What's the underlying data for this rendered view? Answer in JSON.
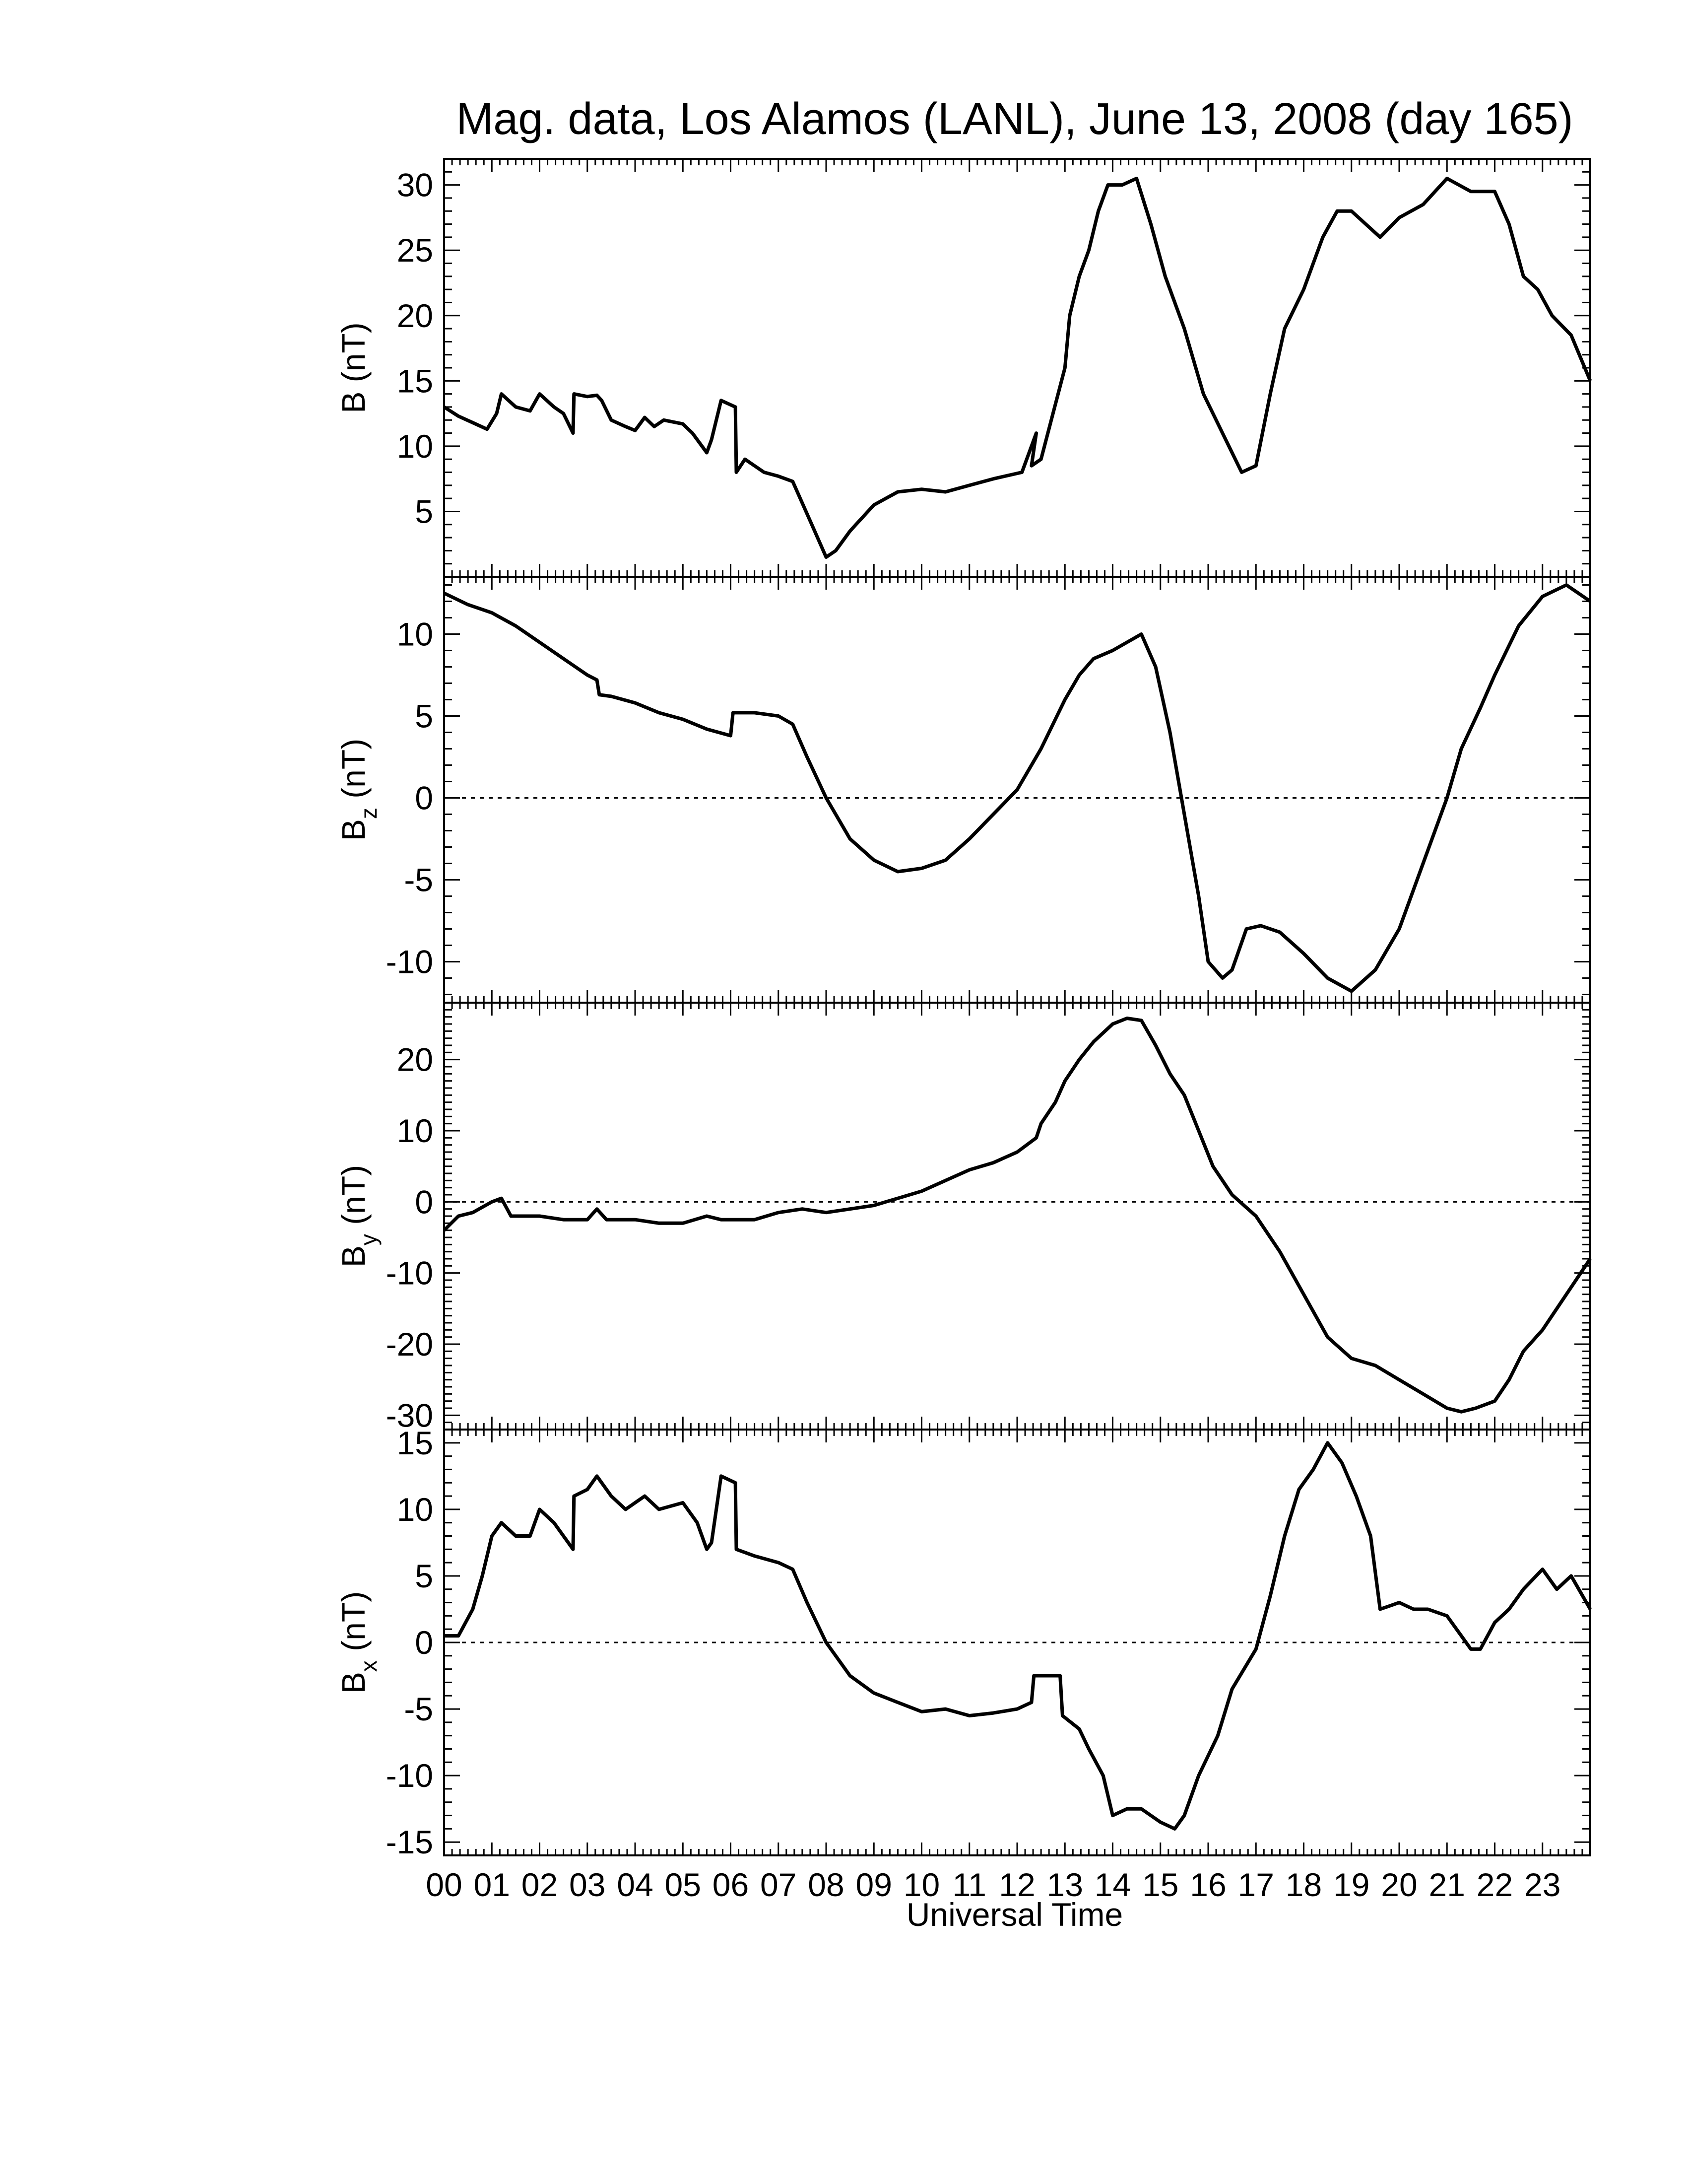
{
  "chart_data": {
    "type": "line",
    "title": "Mag. data, Los Alamos (LANL), June 13, 2008 (day 165)",
    "xlabel": "Universal Time",
    "x_unit": "hours UT",
    "xlim": [
      0,
      24
    ],
    "x_tick_labels": [
      "00",
      "01",
      "02",
      "03",
      "04",
      "05",
      "06",
      "07",
      "08",
      "09",
      "10",
      "11",
      "12",
      "13",
      "14",
      "15",
      "16",
      "17",
      "18",
      "19",
      "20",
      "21",
      "22",
      "23"
    ],
    "grid": false,
    "panels": [
      {
        "name": "B",
        "ylabel": "B (nT)",
        "ylabel_main": "B (nT)",
        "ylabel_sub": "",
        "ylim": [
          0,
          32
        ],
        "y_ticks": [
          5,
          10,
          15,
          20,
          25,
          30
        ],
        "zero_line": false,
        "points": [
          [
            0,
            13
          ],
          [
            0.3,
            12.3
          ],
          [
            0.6,
            11.8
          ],
          [
            0.9,
            11.3
          ],
          [
            1.1,
            12.5
          ],
          [
            1.2,
            14
          ],
          [
            1.5,
            13
          ],
          [
            1.8,
            12.7
          ],
          [
            2.0,
            14
          ],
          [
            2.3,
            13
          ],
          [
            2.5,
            12.5
          ],
          [
            2.7,
            11
          ],
          [
            2.72,
            14
          ],
          [
            3.0,
            13.8
          ],
          [
            3.2,
            13.9
          ],
          [
            3.3,
            13.5
          ],
          [
            3.5,
            12
          ],
          [
            3.8,
            11.5
          ],
          [
            4.0,
            11.2
          ],
          [
            4.2,
            12.2
          ],
          [
            4.4,
            11.5
          ],
          [
            4.6,
            12
          ],
          [
            5.0,
            11.7
          ],
          [
            5.2,
            11
          ],
          [
            5.5,
            9.5
          ],
          [
            5.6,
            10.5
          ],
          [
            5.8,
            13.5
          ],
          [
            6.1,
            13
          ],
          [
            6.12,
            8
          ],
          [
            6.3,
            9
          ],
          [
            6.7,
            8
          ],
          [
            7.0,
            7.7
          ],
          [
            7.3,
            7.3
          ],
          [
            7.7,
            4
          ],
          [
            8.0,
            1.5
          ],
          [
            8.2,
            2
          ],
          [
            8.5,
            3.5
          ],
          [
            9.0,
            5.5
          ],
          [
            9.5,
            6.5
          ],
          [
            10,
            6.7
          ],
          [
            10.5,
            6.5
          ],
          [
            11,
            7
          ],
          [
            11.5,
            7.5
          ],
          [
            12.1,
            8
          ],
          [
            12.4,
            11
          ],
          [
            12.3,
            8.5
          ],
          [
            12.5,
            9
          ],
          [
            13.0,
            16
          ],
          [
            13.1,
            20
          ],
          [
            13.3,
            23
          ],
          [
            13.5,
            25
          ],
          [
            13.7,
            28
          ],
          [
            13.9,
            30
          ],
          [
            14.2,
            30
          ],
          [
            14.5,
            30.5
          ],
          [
            14.8,
            27
          ],
          [
            15.1,
            23
          ],
          [
            15.5,
            19
          ],
          [
            15.9,
            14
          ],
          [
            16.3,
            11
          ],
          [
            16.7,
            8
          ],
          [
            17.0,
            8.5
          ],
          [
            17.3,
            14
          ],
          [
            17.6,
            19
          ],
          [
            18.0,
            22
          ],
          [
            18.4,
            26
          ],
          [
            18.7,
            28
          ],
          [
            19.0,
            28
          ],
          [
            19.3,
            27
          ],
          [
            19.6,
            26
          ],
          [
            20.0,
            27.5
          ],
          [
            20.5,
            28.5
          ],
          [
            21.0,
            30.5
          ],
          [
            21.5,
            29.5
          ],
          [
            22.0,
            29.5
          ],
          [
            22.3,
            27
          ],
          [
            22.6,
            23
          ],
          [
            22.9,
            22
          ],
          [
            23.2,
            20
          ],
          [
            23.6,
            18.5
          ],
          [
            24.0,
            15
          ]
        ]
      },
      {
        "name": "Bz",
        "ylabel": "Bz (nT)",
        "ylabel_main": "B",
        "ylabel_sub": "z",
        "ylabel_unit": "(nT)",
        "ylim": [
          -12.5,
          13.5
        ],
        "y_ticks": [
          -10,
          -5,
          0,
          5,
          10
        ],
        "zero_line": true,
        "points": [
          [
            0,
            12.5
          ],
          [
            0.5,
            11.8
          ],
          [
            1.0,
            11.3
          ],
          [
            1.5,
            10.5
          ],
          [
            2.0,
            9.5
          ],
          [
            2.5,
            8.5
          ],
          [
            3.0,
            7.5
          ],
          [
            3.2,
            7.2
          ],
          [
            3.25,
            6.3
          ],
          [
            3.5,
            6.2
          ],
          [
            4.0,
            5.8
          ],
          [
            4.5,
            5.2
          ],
          [
            5.0,
            4.8
          ],
          [
            5.5,
            4.2
          ],
          [
            6.0,
            3.8
          ],
          [
            6.05,
            5.2
          ],
          [
            6.5,
            5.2
          ],
          [
            7.0,
            5.0
          ],
          [
            7.3,
            4.5
          ],
          [
            7.6,
            2.5
          ],
          [
            8.0,
            0
          ],
          [
            8.5,
            -2.5
          ],
          [
            9.0,
            -3.8
          ],
          [
            9.5,
            -4.5
          ],
          [
            10.0,
            -4.3
          ],
          [
            10.5,
            -3.8
          ],
          [
            11.0,
            -2.5
          ],
          [
            11.5,
            -1
          ],
          [
            12.0,
            0.5
          ],
          [
            12.5,
            3
          ],
          [
            13.0,
            6
          ],
          [
            13.3,
            7.5
          ],
          [
            13.6,
            8.5
          ],
          [
            14.0,
            9
          ],
          [
            14.3,
            9.5
          ],
          [
            14.6,
            10
          ],
          [
            14.9,
            8
          ],
          [
            15.2,
            4
          ],
          [
            15.5,
            -1
          ],
          [
            15.8,
            -6
          ],
          [
            16.0,
            -10
          ],
          [
            16.3,
            -11
          ],
          [
            16.5,
            -10.5
          ],
          [
            16.8,
            -8
          ],
          [
            17.1,
            -7.8
          ],
          [
            17.5,
            -8.2
          ],
          [
            18.0,
            -9.5
          ],
          [
            18.5,
            -11
          ],
          [
            19.0,
            -11.8
          ],
          [
            19.5,
            -10.5
          ],
          [
            20.0,
            -8
          ],
          [
            20.5,
            -4
          ],
          [
            21.0,
            0
          ],
          [
            21.3,
            3
          ],
          [
            21.7,
            5.5
          ],
          [
            22.0,
            7.5
          ],
          [
            22.5,
            10.5
          ],
          [
            23.0,
            12.3
          ],
          [
            23.5,
            13
          ],
          [
            24.0,
            12
          ]
        ]
      },
      {
        "name": "By",
        "ylabel": "By (nT)",
        "ylabel_main": "B",
        "ylabel_sub": "y",
        "ylabel_unit": "(nT)",
        "ylim": [
          -32,
          28
        ],
        "y_ticks": [
          -30,
          -20,
          -10,
          0,
          10,
          20
        ],
        "zero_line": true,
        "points": [
          [
            0,
            -4
          ],
          [
            0.3,
            -2
          ],
          [
            0.6,
            -1.5
          ],
          [
            1.0,
            0
          ],
          [
            1.2,
            0.5
          ],
          [
            1.4,
            -2
          ],
          [
            2.0,
            -2
          ],
          [
            2.5,
            -2.5
          ],
          [
            3.0,
            -2.5
          ],
          [
            3.2,
            -1
          ],
          [
            3.4,
            -2.5
          ],
          [
            4.0,
            -2.5
          ],
          [
            4.5,
            -3
          ],
          [
            5.0,
            -3
          ],
          [
            5.5,
            -2
          ],
          [
            5.8,
            -2.5
          ],
          [
            6.0,
            -2.5
          ],
          [
            6.5,
            -2.5
          ],
          [
            7.0,
            -1.5
          ],
          [
            7.5,
            -1
          ],
          [
            8.0,
            -1.5
          ],
          [
            8.5,
            -1
          ],
          [
            9.0,
            -0.5
          ],
          [
            9.5,
            0.5
          ],
          [
            10.0,
            1.5
          ],
          [
            10.5,
            3
          ],
          [
            11.0,
            4.5
          ],
          [
            11.5,
            5.5
          ],
          [
            12.0,
            7
          ],
          [
            12.4,
            9
          ],
          [
            12.5,
            11
          ],
          [
            12.8,
            14
          ],
          [
            13.0,
            17
          ],
          [
            13.3,
            20
          ],
          [
            13.6,
            22.5
          ],
          [
            14.0,
            25
          ],
          [
            14.3,
            25.8
          ],
          [
            14.6,
            25.5
          ],
          [
            14.9,
            22
          ],
          [
            15.2,
            18
          ],
          [
            15.5,
            15
          ],
          [
            15.8,
            10
          ],
          [
            16.1,
            5
          ],
          [
            16.5,
            1
          ],
          [
            17.0,
            -2
          ],
          [
            17.5,
            -7
          ],
          [
            18.0,
            -13
          ],
          [
            18.5,
            -19
          ],
          [
            19.0,
            -22
          ],
          [
            19.5,
            -23
          ],
          [
            20.0,
            -25
          ],
          [
            20.5,
            -27
          ],
          [
            21.0,
            -29
          ],
          [
            21.3,
            -29.5
          ],
          [
            21.6,
            -29
          ],
          [
            22.0,
            -28
          ],
          [
            22.3,
            -25
          ],
          [
            22.6,
            -21
          ],
          [
            23.0,
            -18
          ],
          [
            23.5,
            -13
          ],
          [
            24.0,
            -8
          ]
        ]
      },
      {
        "name": "Bx",
        "ylabel": "Bx (nT)",
        "ylabel_main": "B",
        "ylabel_sub": "x",
        "ylabel_unit": "(nT)",
        "ylim": [
          -16,
          16
        ],
        "y_ticks": [
          -15,
          -10,
          -5,
          0,
          5,
          10,
          15
        ],
        "zero_line": true,
        "points": [
          [
            0,
            0.5
          ],
          [
            0.3,
            0.5
          ],
          [
            0.6,
            2.5
          ],
          [
            0.8,
            5
          ],
          [
            1.0,
            8
          ],
          [
            1.2,
            9
          ],
          [
            1.5,
            8
          ],
          [
            1.8,
            8
          ],
          [
            2.0,
            10
          ],
          [
            2.3,
            9
          ],
          [
            2.5,
            8
          ],
          [
            2.7,
            7
          ],
          [
            2.72,
            11
          ],
          [
            3.0,
            11.5
          ],
          [
            3.2,
            12.5
          ],
          [
            3.5,
            11
          ],
          [
            3.8,
            10
          ],
          [
            4.0,
            10.5
          ],
          [
            4.2,
            11
          ],
          [
            4.5,
            10
          ],
          [
            5.0,
            10.5
          ],
          [
            5.3,
            9
          ],
          [
            5.5,
            7
          ],
          [
            5.6,
            7.5
          ],
          [
            5.8,
            12.5
          ],
          [
            6.1,
            12
          ],
          [
            6.12,
            7
          ],
          [
            6.5,
            6.5
          ],
          [
            7.0,
            6
          ],
          [
            7.3,
            5.5
          ],
          [
            7.6,
            3
          ],
          [
            8.0,
            0
          ],
          [
            8.5,
            -2.5
          ],
          [
            9.0,
            -3.8
          ],
          [
            9.5,
            -4.5
          ],
          [
            10.0,
            -5.2
          ],
          [
            10.5,
            -5
          ],
          [
            11.0,
            -5.5
          ],
          [
            11.5,
            -5.3
          ],
          [
            12.0,
            -5
          ],
          [
            12.3,
            -4.5
          ],
          [
            12.35,
            -2.5
          ],
          [
            12.9,
            -2.5
          ],
          [
            12.95,
            -5.5
          ],
          [
            13.3,
            -6.5
          ],
          [
            13.5,
            -8
          ],
          [
            13.8,
            -10
          ],
          [
            14.0,
            -13
          ],
          [
            14.3,
            -12.5
          ],
          [
            14.6,
            -12.5
          ],
          [
            15.0,
            -13.5
          ],
          [
            15.3,
            -14
          ],
          [
            15.5,
            -13
          ],
          [
            15.8,
            -10
          ],
          [
            16.2,
            -7
          ],
          [
            16.5,
            -3.5
          ],
          [
            17.0,
            -0.5
          ],
          [
            17.3,
            3.5
          ],
          [
            17.6,
            8
          ],
          [
            17.9,
            11.5
          ],
          [
            18.2,
            13
          ],
          [
            18.5,
            15
          ],
          [
            18.8,
            13.5
          ],
          [
            19.1,
            11
          ],
          [
            19.4,
            8
          ],
          [
            19.6,
            2.5
          ],
          [
            20.0,
            3
          ],
          [
            20.3,
            2.5
          ],
          [
            20.6,
            2.5
          ],
          [
            21.0,
            2
          ],
          [
            21.3,
            0.5
          ],
          [
            21.5,
            -0.5
          ],
          [
            21.7,
            -0.5
          ],
          [
            22.0,
            1.5
          ],
          [
            22.3,
            2.5
          ],
          [
            22.6,
            4
          ],
          [
            23.0,
            5.5
          ],
          [
            23.3,
            4
          ],
          [
            23.6,
            5
          ],
          [
            24.0,
            2.5
          ]
        ]
      }
    ]
  }
}
